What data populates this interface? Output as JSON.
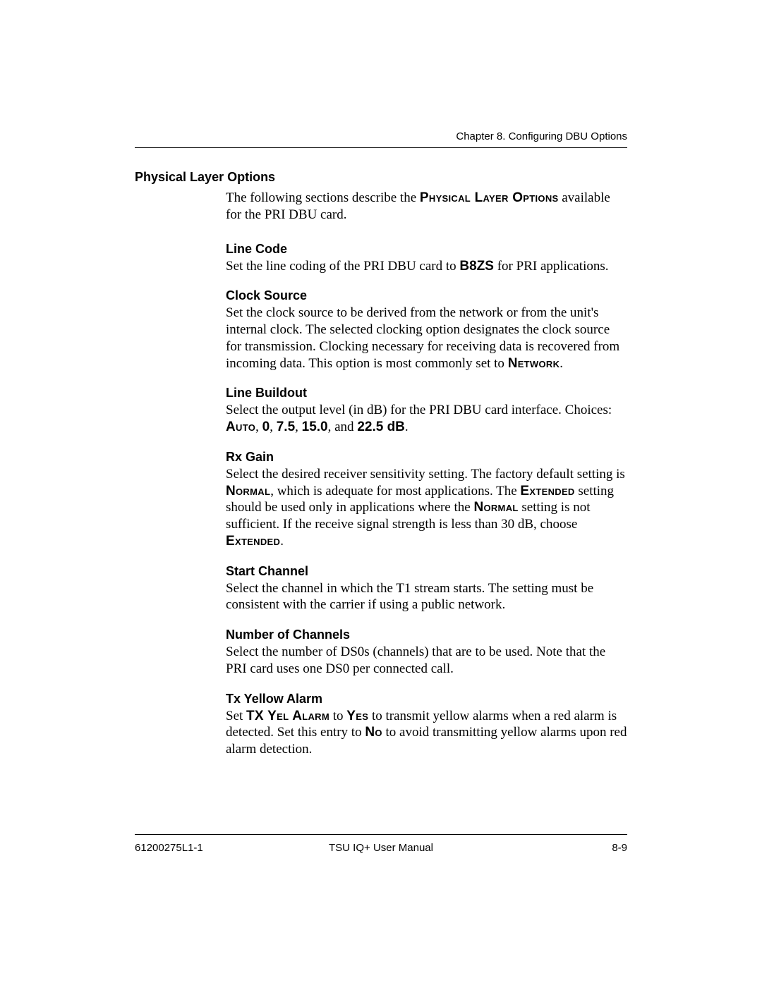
{
  "page": {
    "running_header": "Chapter 8. Configuring DBU Options",
    "footer_left": "61200275L1-1",
    "footer_center": "TSU IQ+ User Manual",
    "footer_right": "8-9"
  },
  "section_title": "Physical Layer Options",
  "intro": {
    "pre": "The following sections describe the ",
    "sc": "Physical Layer Options",
    "post": " available for the PRI DBU card."
  },
  "subs": {
    "line_code": {
      "heading": "Line Code",
      "pre": "Set the line coding of the PRI DBU card to ",
      "bold1": "B8ZS",
      "post": " for PRI applications."
    },
    "clock_source": {
      "heading": "Clock Source",
      "pre": "Set the clock source to be derived from the network or from the unit's internal clock. The selected clocking option designates the clock source for transmission. Clocking necessary for receiving data is recovered from incoming data. This option is most commonly set to ",
      "sc1": "Network",
      "post": "."
    },
    "line_buildout": {
      "heading": "Line Buildout",
      "pre": "Select the output level (in dB) for the PRI DBU card interface. Choices:  ",
      "sc1": "Auto",
      "sep1": ", ",
      "b1": "0",
      "sep2": ", ",
      "b2": "7.5",
      "sep3": ", ",
      "b3": "15.0",
      "sep4": ", and ",
      "b4": "22.5 dB",
      "post": "."
    },
    "rx_gain": {
      "heading": "Rx Gain",
      "pre": "Select the desired receiver sensitivity setting. The factory default setting is ",
      "sc1": "Normal",
      "mid1": ", which is adequate for most applications. The ",
      "sc2": "Extended",
      "mid2": " setting should be used only in applications where the ",
      "sc3": "Normal",
      "mid3": " setting is not sufficient. If the receive signal strength is less than 30 dB, choose ",
      "sc4": "Extended",
      "post": "."
    },
    "start_channel": {
      "heading": "Start Channel",
      "body": "Select the channel in which the T1 stream starts. The setting must be consistent with the carrier if using a public network."
    },
    "num_channels": {
      "heading": "Number of Channels",
      "body": "Select the number of DS0s (channels) that are to be used. Note that the  PRI card uses one DS0 per connected call."
    },
    "tx_yellow": {
      "heading": "Tx Yellow Alarm",
      "pre": "Set ",
      "sc1": "TX Yel Alarm",
      "mid1": " to ",
      "sc2": "Yes",
      "mid2": " to transmit yellow alarms when a red alarm is detected. Set this entry to ",
      "sc3": "No",
      "post": " to avoid transmitting yellow alarms upon red alarm detection."
    }
  }
}
